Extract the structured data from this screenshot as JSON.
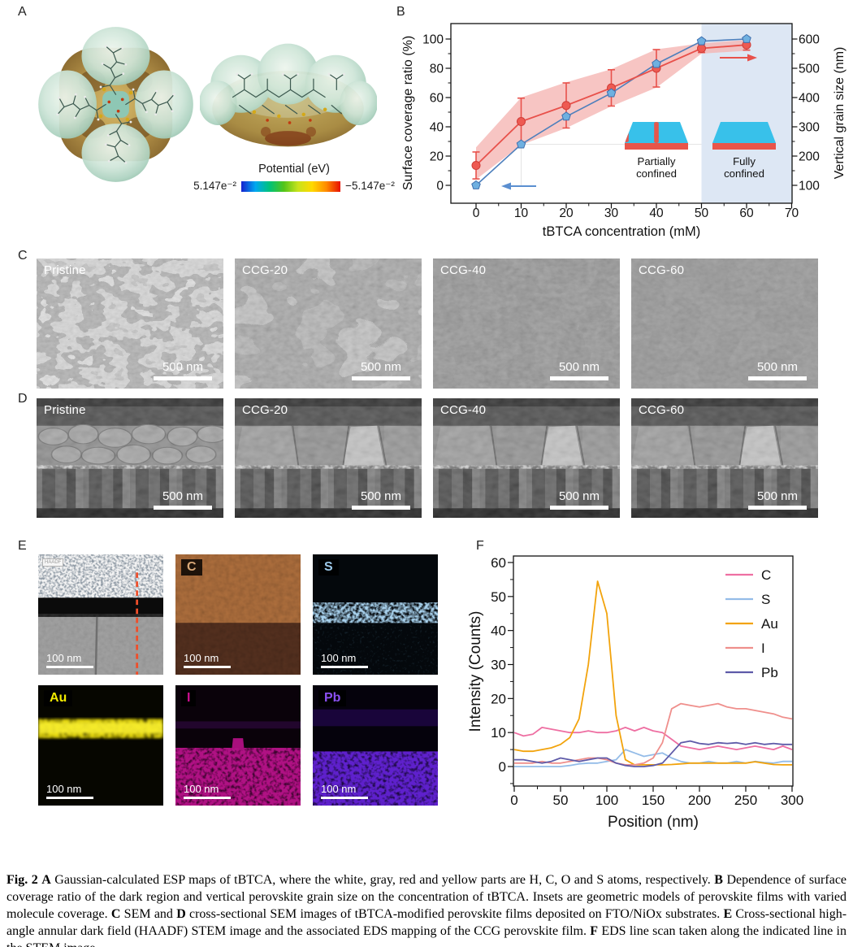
{
  "figure_label": {
    "a": "A",
    "b": "B",
    "c": "C",
    "d": "D",
    "e": "E",
    "f": "F"
  },
  "panel_a": {
    "colorbar_title": "Potential (eV)",
    "colorbar_left": "5.147e⁻²",
    "colorbar_right": "−5.147e⁻²",
    "colorbar_colors": [
      "#1522cf",
      "#00a8f0",
      "#00c27a",
      "#52c41a",
      "#c7e31c",
      "#ffd900",
      "#ff8c00",
      "#e81000"
    ]
  },
  "sem_top": {
    "scale_label": "500 nm",
    "items": [
      {
        "label": "Pristine",
        "kind": "grains"
      },
      {
        "label": "CCG-20",
        "kind": "mottled"
      },
      {
        "label": "CCG-40",
        "kind": "smooth"
      },
      {
        "label": "CCG-60",
        "kind": "smooth2"
      }
    ]
  },
  "sem_cross": {
    "scale_label": "500 nm",
    "items": [
      {
        "label": "Pristine",
        "kind": "cross-small"
      },
      {
        "label": "CCG-20",
        "kind": "cross-large"
      },
      {
        "label": "CCG-40",
        "kind": "cross-large"
      },
      {
        "label": "CCG-60",
        "kind": "cross-large"
      }
    ]
  },
  "eds": {
    "scale_label": "100 nm",
    "items": [
      {
        "label": "HAADF",
        "kind": "haadf",
        "label_color": "#9a9a9a"
      },
      {
        "label": "C",
        "kind": "map-c",
        "label_color": "#d8a878"
      },
      {
        "label": "S",
        "kind": "map-s",
        "label_color": "#9cc8e8"
      },
      {
        "label": "Au",
        "kind": "map-au",
        "label_color": "#f2ea00"
      },
      {
        "label": "I",
        "kind": "map-i",
        "label_color": "#cc1090"
      },
      {
        "label": "Pb",
        "kind": "map-pb",
        "label_color": "#8a50f0"
      }
    ]
  },
  "chart_data": [
    {
      "type": "line",
      "panel": "B",
      "xlabel": "tBTCA concentration (mM)",
      "ylabel_left": "Surface coverage ratio (%)",
      "ylabel_right": "Vertical grain size (nm)",
      "xlim": [
        -4.5,
        70
      ],
      "xticks": [
        0,
        10,
        20,
        30,
        40,
        50,
        60,
        70
      ],
      "ylim_left": [
        0,
        100
      ],
      "yticks_left": [
        0,
        20,
        40,
        60,
        80,
        100
      ],
      "ylim_right": [
        100,
        600
      ],
      "yticks_right": [
        100,
        200,
        300,
        400,
        500,
        600
      ],
      "x": [
        0,
        10,
        20,
        30,
        40,
        50,
        60
      ],
      "series": [
        {
          "name": "Surface coverage ratio",
          "axis": "left",
          "color": "#4d7fbc",
          "marker": "pentagon",
          "marker_fill": "#6fb0e0",
          "values": [
            0,
            28,
            47,
            63,
            83,
            98.5,
            100
          ]
        },
        {
          "name": "Vertical grain size",
          "axis": "right",
          "color": "#e8514b",
          "marker": "circle",
          "marker_fill": "#ee5a52",
          "values": [
            168,
            318,
            373,
            433,
            500,
            568,
            580
          ],
          "errors": [
            46,
            80,
            77,
            62,
            64,
            14,
            18
          ]
        }
      ],
      "band": {
        "axis": "right",
        "color": "#f5b6b4",
        "hi": [
          230,
          400,
          452,
          497,
          565,
          585,
          597
        ],
        "lo": [
          120,
          238,
          296,
          370,
          434,
          550,
          560
        ]
      },
      "shaded_region": {
        "from": 50,
        "to": 70,
        "color": "#dde7f4"
      },
      "insets": [
        {
          "line1": "Partially",
          "line2": "confined",
          "spotted": true,
          "top_color": "#38c1ea",
          "base_color": "#e8554a"
        },
        {
          "line1": "Fully",
          "line2": "confined",
          "spotted": false,
          "top_color": "#38c1ea",
          "base_color": "#e8554a"
        }
      ],
      "arrow_left_color": "#5b8fd0",
      "arrow_right_color": "#e8514b",
      "grid": false,
      "legend_position": "none"
    },
    {
      "type": "line",
      "panel": "F",
      "xlabel": "Position (nm)",
      "ylabel": "Intensity (Counts)",
      "xlim": [
        0,
        300
      ],
      "ylim": [
        -6,
        60
      ],
      "xticks": [
        0,
        50,
        100,
        150,
        200,
        250,
        300
      ],
      "yticks": [
        0,
        10,
        20,
        30,
        40,
        50,
        60
      ],
      "x_step": 10,
      "legend_position": "top-right",
      "grid": false,
      "series": [
        {
          "name": "C",
          "color": "#ee6fa2",
          "values": [
            10,
            9,
            9.5,
            11.5,
            11,
            10.5,
            10,
            10,
            10.5,
            10,
            10,
            10.5,
            11.5,
            10.5,
            11.5,
            10.5,
            10,
            8,
            6,
            5.5,
            5,
            5.5,
            6,
            5.5,
            5,
            5.5,
            6,
            5.5,
            5,
            6,
            5
          ]
        },
        {
          "name": "S",
          "color": "#94bce8",
          "values": [
            0,
            0,
            0,
            0,
            0,
            0,
            0.3,
            0.8,
            1,
            1,
            1.5,
            2,
            5,
            4,
            3,
            3.5,
            4,
            2.5,
            1.5,
            1,
            1,
            1.5,
            1,
            1,
            1.5,
            1,
            1.5,
            1.2,
            1,
            1.5,
            1.5
          ]
        },
        {
          "name": "Au",
          "color": "#f2a30c",
          "values": [
            5,
            4.5,
            4.5,
            5,
            5.5,
            6.5,
            8.5,
            14,
            30,
            54.5,
            45,
            15,
            2,
            0.5,
            0.5,
            0.5,
            0.5,
            0.6,
            0.8,
            1,
            1,
            1,
            1,
            1,
            1,
            1,
            1.4,
            1,
            0.6,
            0.5,
            0.5
          ]
        },
        {
          "name": "I",
          "color": "#ef8f8c",
          "values": [
            1,
            1,
            1,
            1.5,
            1,
            1,
            1.5,
            2,
            2.5,
            2.5,
            2,
            1,
            0.5,
            0.5,
            1,
            2.5,
            7,
            17,
            18.5,
            18,
            17.5,
            18,
            18.5,
            17.5,
            17,
            17,
            16.5,
            16,
            15.5,
            14.5,
            14
          ]
        },
        {
          "name": "Pb",
          "color": "#5e5aa8",
          "values": [
            2,
            2,
            1.5,
            1,
            1.5,
            2.5,
            2,
            1.5,
            2,
            2.5,
            2.5,
            1,
            0.3,
            0,
            0,
            0.3,
            1,
            4,
            7,
            7.5,
            6.8,
            6.5,
            7,
            6.8,
            7,
            6.5,
            7,
            6.5,
            6.8,
            6.5,
            6.5
          ]
        }
      ]
    }
  ],
  "caption": {
    "segments": [
      {
        "text": "Fig. 2",
        "bold": true
      },
      {
        "text": "  ",
        "bold": false
      },
      {
        "text": "A",
        "bold": true
      },
      {
        "text": " Gaussian-calculated ESP maps of tBTCA, where the white, gray, red and yellow parts are H, C, O and S atoms, respectively. ",
        "bold": false
      },
      {
        "text": "B",
        "bold": true
      },
      {
        "text": " Dependence of surface coverage ratio of the dark region and vertical perovskite grain size on the concentration of tBTCA. Insets are geometric models of perovskite films with varied molecule coverage. ",
        "bold": false
      },
      {
        "text": "C",
        "bold": true
      },
      {
        "text": " SEM and ",
        "bold": false
      },
      {
        "text": "D",
        "bold": true
      },
      {
        "text": " cross-sectional SEM images of tBTCA-modified perovskite films deposited on FTO/NiOx substrates. ",
        "bold": false
      },
      {
        "text": "E",
        "bold": true
      },
      {
        "text": " Cross-sectional high-angle annular dark field (HAADF) STEM image and the associated EDS mapping of the CCG perovskite film. ",
        "bold": false
      },
      {
        "text": "F",
        "bold": true
      },
      {
        "text": " EDS line scan taken along the indicated line in the STEM image",
        "bold": false
      }
    ]
  }
}
